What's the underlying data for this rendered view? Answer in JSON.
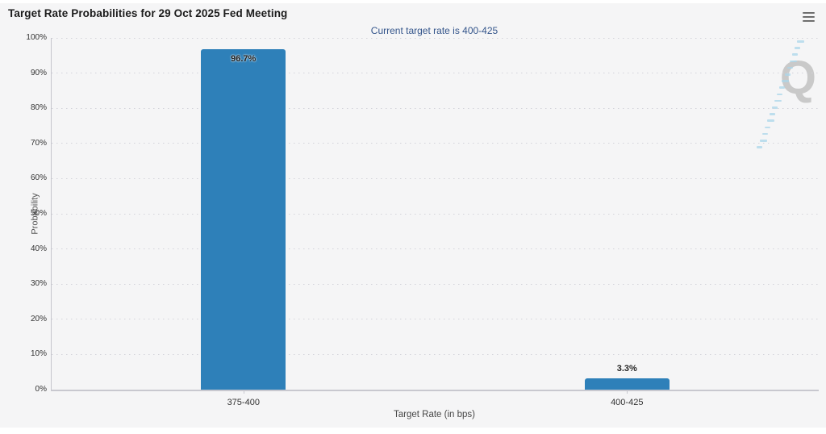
{
  "header": {
    "menu_icon": "hamburger-menu-icon"
  },
  "watermark": {
    "letter": "Q"
  },
  "chart_data": {
    "type": "bar",
    "title": "Target Rate Probabilities for 29 Oct 2025 Fed Meeting",
    "subtitle": "Current target rate is 400-425",
    "categories": [
      "375-400",
      "400-425"
    ],
    "values": [
      96.7,
      3.3
    ],
    "value_labels": [
      "96.7%",
      "3.3%"
    ],
    "xlabel": "Target Rate (in bps)",
    "ylabel": "Probability",
    "ylim": [
      0,
      100
    ],
    "ytick_step": 10,
    "ytick_suffix": "%",
    "grid": "dotted-horizontal",
    "legend": "none"
  },
  "colors": {
    "background": "#f5f5f6",
    "bar": "#2e80b9",
    "subtitle": "#34558b",
    "axis": "#c8c8cf",
    "grid_dot": "#d3d3da",
    "tick_text": "#333333",
    "watermark": "#c9c9c9",
    "watermark_hatch": "#a9d6e9"
  }
}
